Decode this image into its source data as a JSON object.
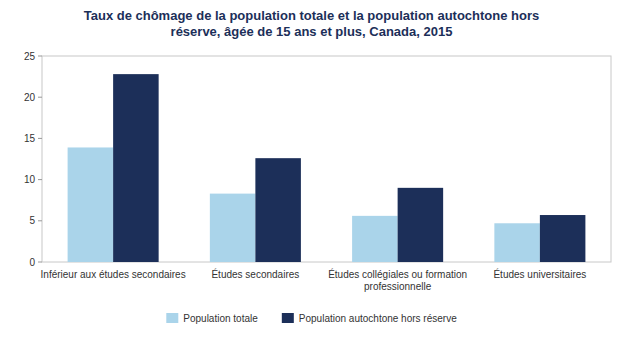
{
  "chart_data": {
    "type": "bar",
    "title": "Taux de chômage de la population totale et la population autochtone hors\nréserve, âgée de 15 ans et plus, Canada, 2015",
    "categories": [
      "Inférieur aux études secondaires",
      "Études secondaires",
      "Études collégiales ou formation\nprofessionnelle",
      "Études universitaires"
    ],
    "series": [
      {
        "name": "Population totale",
        "color": "#aad4ea",
        "values": [
          13.9,
          8.3,
          5.6,
          4.7
        ]
      },
      {
        "name": "Population autochtone hors réserve",
        "color": "#1c2f59",
        "values": [
          22.8,
          12.6,
          9.0,
          5.7
        ]
      }
    ],
    "ylim": [
      0,
      25
    ],
    "yticks": [
      0,
      5,
      10,
      15,
      20,
      25
    ],
    "grid": false,
    "legend": "bottom"
  }
}
